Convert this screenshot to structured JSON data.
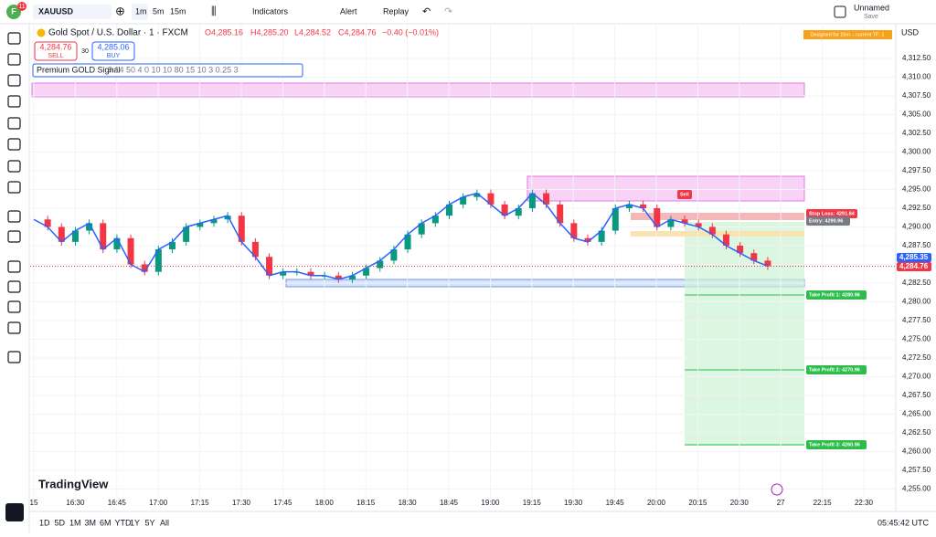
{
  "top_bar": {
    "avatar": "F",
    "badge": "11",
    "symbol": "XAUUSD",
    "intervals": [
      "1m",
      "5m",
      "15m"
    ],
    "indicators": "Indicators",
    "alert": "Alert",
    "replay": "Replay",
    "layout_name": "Unnamed",
    "save": "Save"
  },
  "legend": {
    "title": "Gold Spot / U.S. Dollar · 1 · FXCM",
    "open": "O4,285.16",
    "high": "H4,285.20",
    "low": "L4,284.52",
    "close": "C4,284.76",
    "change": "−0.40 (−0.01%)",
    "sell_price": "4,284.76",
    "sell": "SELL",
    "spread": "30",
    "buy_price": "4,285.06",
    "buy": "BUY",
    "indicator": "Premium GOLD Signal",
    "indicator_params": "9 14 50 4 0 10 10 80 15 10 3 0.25 3"
  },
  "banner": "Designed for 15m – current TF: 1",
  "currency": "USD",
  "chart": {
    "type": "candlestick",
    "closes": [
      4291,
      4290,
      4288,
      4289.5,
      4290.5,
      4287,
      4288.5,
      4285,
      4284,
      4287,
      4288,
      4290,
      4290.5,
      4291,
      4291.5,
      4288,
      4286,
      4283.5,
      4284,
      4284,
      4283.5,
      4283.5,
      4283,
      4283.5,
      4284.5,
      4285.5,
      4287,
      4289,
      4290.5,
      4291.5,
      4293,
      4294,
      4294.5,
      4293,
      4291.5,
      4292.5,
      4294.5,
      4293,
      4290.5,
      4288.5,
      4288,
      4289.5,
      4292.5,
      4293,
      4292.5,
      4290,
      4291,
      4290.5,
      4290,
      4289,
      4287.5,
      4286.5,
      4285.5,
      4284.76
    ],
    "ylim": [
      4253.84,
      4317.13
    ],
    "yticks": [
      {
        "value": 4312.5,
        "label": "4,312.50"
      },
      {
        "value": 4310,
        "label": "4,310.00"
      },
      {
        "value": 4307.5,
        "label": "4,307.50"
      },
      {
        "value": 4305,
        "label": "4,305.00"
      },
      {
        "value": 4302.5,
        "label": "4,302.50"
      },
      {
        "value": 4300,
        "label": "4,300.00"
      },
      {
        "value": 4297.5,
        "label": "4,297.50"
      },
      {
        "value": 4295,
        "label": "4,295.00"
      },
      {
        "value": 4292.5,
        "label": "4,292.50"
      },
      {
        "value": 4290,
        "label": "4,290.00"
      },
      {
        "value": 4287.5,
        "label": "4,287.50"
      },
      {
        "value": 4285,
        "label": "4,285.00"
      },
      {
        "value": 4282.5,
        "label": "4,282.50"
      },
      {
        "value": 4280,
        "label": "4,280.00"
      },
      {
        "value": 4277.5,
        "label": "4,277.50"
      },
      {
        "value": 4275,
        "label": "4,275.00"
      },
      {
        "value": 4272.5,
        "label": "4,272.50"
      },
      {
        "value": 4270,
        "label": "4,270.00"
      },
      {
        "value": 4267.5,
        "label": "4,267.50"
      },
      {
        "value": 4265,
        "label": "4,265.00"
      },
      {
        "value": 4262.5,
        "label": "4,262.50"
      },
      {
        "value": 4260,
        "label": "4,260.00"
      },
      {
        "value": 4257.5,
        "label": "4,257.50"
      },
      {
        "value": 4255,
        "label": "4,255.00"
      }
    ],
    "time_labels": [
      "15",
      "16:30",
      "16:45",
      "17:00",
      "17:15",
      "17:30",
      "17:45",
      "18:00",
      "18:15",
      "18:30",
      "18:45",
      "19:00",
      "19:15",
      "19:30",
      "19:45",
      "20:00",
      "20:15",
      "20:30",
      "27",
      "22:15",
      "22:30"
    ],
    "sell": "Sell",
    "stop_loss": "Stop Loss: 4291.84",
    "entry": "Entry: 4290.96",
    "tp1": "Take Profit 1: 4280.96",
    "tp2": "Take Profit 2: 4270.96",
    "tp3": "Take Profit 3: 4260.96",
    "last_price": "4,285.35",
    "close_price": "4,284.76",
    "logo": "TradingView"
  },
  "bottom_bar": {
    "ranges": [
      "1D",
      "5D",
      "1M",
      "3M",
      "6M",
      "YTD",
      "1Y",
      "5Y",
      "All"
    ],
    "clock": "05:45:42 UTC"
  }
}
